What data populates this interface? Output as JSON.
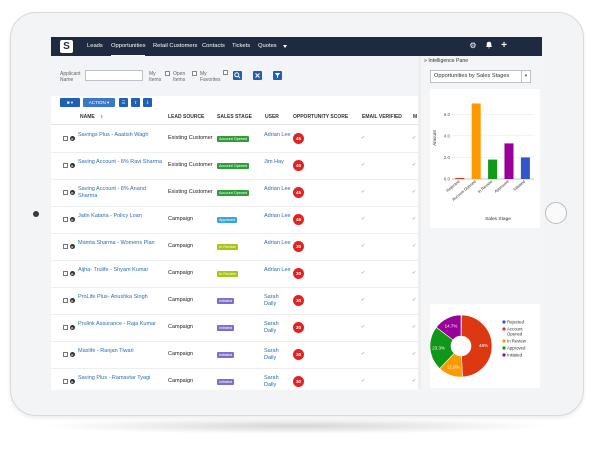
{
  "nav": {
    "logo": "S",
    "items": [
      {
        "label": "Leads",
        "active": false
      },
      {
        "label": "Opportunities",
        "active": true
      },
      {
        "label": "Retail Customers",
        "active": false
      },
      {
        "label": "Contacts",
        "active": false
      },
      {
        "label": "Tickets",
        "active": false
      },
      {
        "label": "Quotes",
        "active": false
      }
    ],
    "icons": [
      "gear-icon",
      "bell-icon",
      "plus-icon"
    ]
  },
  "filters": {
    "applicant_label": "Applicant Name",
    "applicant_value": "",
    "my_items_label": "My Items",
    "open_items_label": "Open Items",
    "my_favorites_label": "My Favorites",
    "search_icon": "search-icon",
    "clear_icon": "close-icon",
    "filter_icon": "filter-icon"
  },
  "actions": {
    "select_label": "■ ▾",
    "action_label": "ACTION ▾",
    "icons": [
      "list-icon",
      "upload-icon",
      "download-icon"
    ]
  },
  "table": {
    "columns": [
      "NAME",
      "LEAD SOURCE",
      "SALES STAGE",
      "USER",
      "OPPORTUNITY SCORE",
      "EMAIL VERIFIED",
      "M"
    ],
    "rows": [
      {
        "name": "Savings Plus - Aaatish Wagh",
        "source": "Existing Customer",
        "stage": "Account Opened",
        "stage_color": "#2e9d3a",
        "user": "Adrian Lee",
        "score": "45"
      },
      {
        "name": "Saving Account - 8% Ravi Sharma",
        "source": "Existing Customer",
        "stage": "Account Opened",
        "stage_color": "#2e9d3a",
        "user": "Jim Hay",
        "score": "45"
      },
      {
        "name": "Saving Account - 8% Anand Sharma",
        "source": "Existing Customer",
        "stage": "Account Opened",
        "stage_color": "#2e9d3a",
        "user": "Adrian Lee",
        "score": "45"
      },
      {
        "name": "Jatin Kataria - Policy Loan",
        "source": "Campaign",
        "stage": "Approved",
        "stage_color": "#3aa5d8",
        "user": "Adrian Lee",
        "score": "45"
      },
      {
        "name": "Mamta Sharma - Womens Plan",
        "source": "Campaign",
        "stage": "In Review",
        "stage_color": "#a6c419",
        "user": "Adrian Lee",
        "score": "30"
      },
      {
        "name": "Aijha- Trulife - Shyam Kumar",
        "source": "Campaign",
        "stage": "In Review",
        "stage_color": "#a6c419",
        "user": "Adrian Lee",
        "score": "30"
      },
      {
        "name": "ProLife Plus- Anushka Singh",
        "source": "Campaign",
        "stage": "Initiated",
        "stage_color": "#7b6fc9",
        "user": "Sarah Dally",
        "score": "30"
      },
      {
        "name": "Prulink Assurance - Raja Kumar",
        "source": "Campaign",
        "stage": "Initiated",
        "stage_color": "#7b6fc9",
        "user": "Sarah Dally",
        "score": "30"
      },
      {
        "name": "Maxlife - Ranjan Tiwari",
        "source": "Campaign",
        "stage": "Initiated",
        "stage_color": "#7b6fc9",
        "user": "Sarah Dally",
        "score": "30"
      },
      {
        "name": "Saving Plus - Ramavtar Tyagi",
        "source": "Campaign",
        "stage": "Initiated",
        "stage_color": "#7b6fc9",
        "user": "Sarah Dally",
        "score": "30"
      }
    ]
  },
  "pane": {
    "title": "Intelligence Pane",
    "select_value": "Opportunities by Sales Stages"
  },
  "chart_data": [
    {
      "type": "bar",
      "categories": [
        "Rejected",
        "Account Opened",
        "In Review",
        "Approved",
        "Initiated"
      ],
      "values": [
        0.1,
        7,
        1.8,
        3.3,
        2
      ],
      "colors": [
        "#e03b1f",
        "#ff9900",
        "#129a1a",
        "#990099",
        "#3355cc"
      ],
      "xlabel": "Sales Stage",
      "ylabel": "Amount",
      "yticks": [
        "0.0",
        "2.0",
        "4.0",
        "6.0"
      ],
      "ylim": [
        0,
        7.6
      ]
    },
    {
      "type": "pie",
      "labels": [
        "Rejected",
        "Account Opened",
        "In Review",
        "Approved",
        "Initiated"
      ],
      "values": [
        0.3,
        49,
        12.8,
        23.3,
        14.7
      ],
      "value_labels": [
        "",
        "49%",
        "12.8%",
        "23.3%",
        "14.7%"
      ],
      "colors": [
        "#3355cc",
        "#dc3912",
        "#ff9900",
        "#109618",
        "#990099"
      ],
      "legend": "right"
    }
  ]
}
